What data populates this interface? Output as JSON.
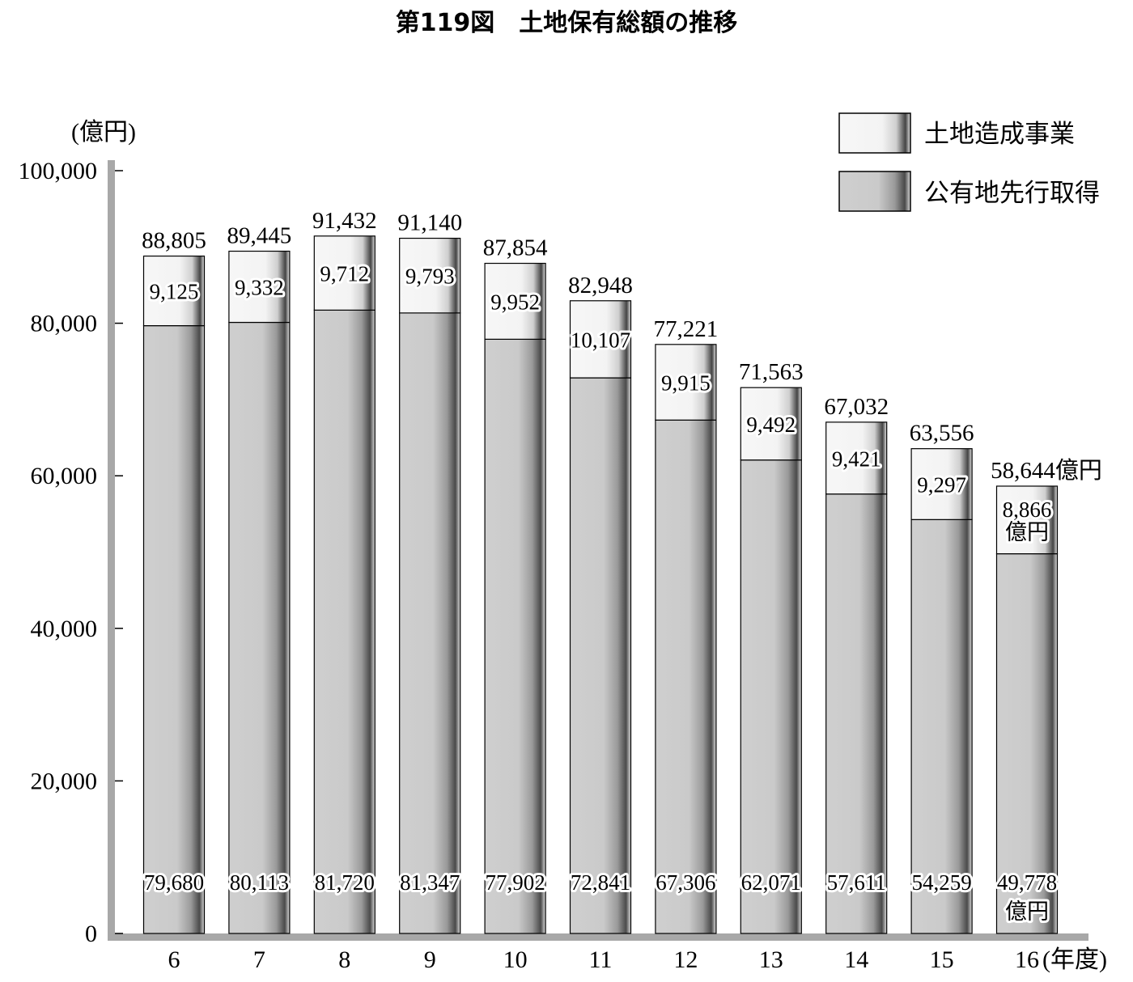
{
  "chart_data": {
    "type": "bar",
    "stacked": true,
    "title": "第119図　土地保有総額の推移",
    "y_unit_label": "(億円)",
    "x_unit_label": "(年度)",
    "categories": [
      "6",
      "7",
      "8",
      "9",
      "10",
      "11",
      "12",
      "13",
      "14",
      "15",
      "16"
    ],
    "series": [
      {
        "name": "公有地先行取得",
        "color": "#cdcdcd",
        "values": [
          79680,
          80113,
          81720,
          81347,
          77902,
          72841,
          67306,
          62071,
          57611,
          54259,
          49778
        ],
        "labels": [
          "79,680",
          "80,113",
          "81,720",
          "81,347",
          "77,902",
          "72,841",
          "67,306",
          "62,071",
          "57,611",
          "54,259",
          "49,778"
        ]
      },
      {
        "name": "土地造成事業",
        "color": "#f4f4f4",
        "values": [
          9125,
          9332,
          9712,
          9793,
          9952,
          10107,
          9915,
          9492,
          9421,
          9297,
          8866
        ],
        "labels": [
          "9,125",
          "9,332",
          "9,712",
          "9,793",
          "9,952",
          "10,107",
          "9,915",
          "9,492",
          "9,421",
          "9,297",
          "8,866"
        ]
      }
    ],
    "totals": [
      88805,
      89445,
      91432,
      91140,
      87854,
      82948,
      77221,
      71563,
      67032,
      63556,
      58644
    ],
    "total_labels": [
      "88,805",
      "89,445",
      "91,432",
      "91,140",
      "87,854",
      "82,948",
      "77,221",
      "71,563",
      "67,032",
      "63,556",
      "58,644億円"
    ],
    "last_bar_unit": "億円",
    "ylim": [
      0,
      100000
    ],
    "y_ticks": [
      0,
      20000,
      40000,
      60000,
      80000,
      100000
    ],
    "y_tick_labels": [
      "0",
      "20,000",
      "40,000",
      "60,000",
      "80,000",
      "100,000"
    ],
    "grid": false,
    "legend_position": "top-right"
  }
}
